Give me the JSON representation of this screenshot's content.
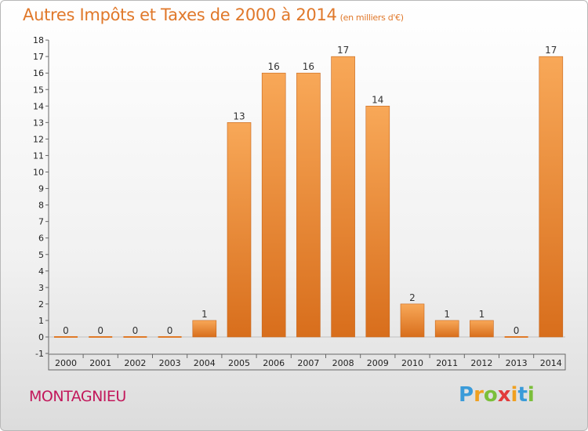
{
  "chart_data": {
    "type": "bar",
    "title": "Autres Impôts et Taxes de 2000 à 2014",
    "subtitle": "(en milliers d'€)",
    "categories": [
      "2000",
      "2001",
      "2002",
      "2003",
      "2004",
      "2005",
      "2006",
      "2007",
      "2008",
      "2009",
      "2010",
      "2011",
      "2012",
      "2013",
      "2014"
    ],
    "values": [
      0,
      0,
      0,
      0,
      1,
      13,
      16,
      16,
      17,
      14,
      2,
      1,
      1,
      0,
      17
    ],
    "ylim": [
      -1,
      18
    ],
    "yticks": [
      -1,
      0,
      1,
      2,
      3,
      4,
      5,
      6,
      7,
      8,
      9,
      10,
      11,
      12,
      13,
      14,
      15,
      16,
      17,
      18
    ],
    "grid": false,
    "bar_color": "#f08a35"
  },
  "place_label": "MONTAGNIEU",
  "logo": {
    "letters": [
      "P",
      "r",
      "o",
      "x",
      "i",
      "t",
      "i"
    ],
    "colors": [
      "#3a9bd9",
      "#f0a020",
      "#7bbf3a",
      "#e23b3b",
      "#f0a020",
      "#3a9bd9",
      "#7bbf3a"
    ]
  }
}
